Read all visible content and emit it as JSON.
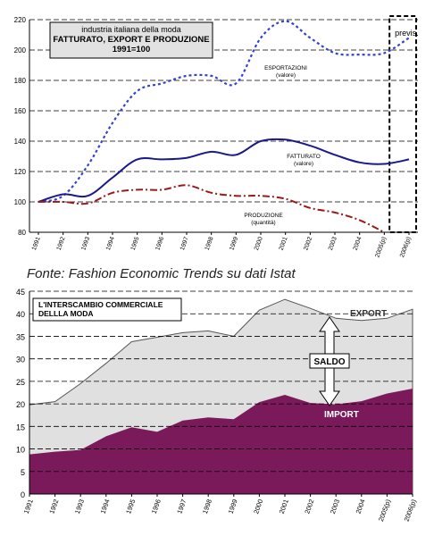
{
  "source_text": "Fonte: Fashion Economic Trends su dati Istat",
  "chart_data": [
    {
      "type": "line",
      "title_lines": [
        "industria italiana della moda",
        "FATTURATO, EXPORT E PRODUZIONE",
        "1991=100"
      ],
      "x": [
        "1991",
        "1992",
        "1993",
        "1994",
        "1995",
        "1996",
        "1997",
        "1998",
        "1999",
        "2000",
        "2001",
        "2002",
        "2003",
        "2004",
        "2005(p)",
        "2006(p)"
      ],
      "ylim": [
        80,
        220
      ],
      "yticks": [
        80,
        100,
        120,
        140,
        160,
        180,
        200,
        220
      ],
      "grid": true,
      "forecast_label": "previs.",
      "series": [
        {
          "name": "ESPORTAZIONI",
          "unit_label": "(valore)",
          "color": "#3344cc",
          "style": "dotted",
          "values": [
            100,
            104,
            124,
            152,
            173,
            178,
            183,
            183,
            178,
            208,
            219,
            208,
            198,
            197,
            198,
            208
          ]
        },
        {
          "name": "FATTURATO",
          "unit_label": "(valore)",
          "color": "#1a1a8a",
          "style": "solid",
          "values": [
            100,
            105,
            104,
            116,
            128,
            128,
            129,
            133,
            131,
            140,
            141,
            137,
            131,
            126,
            125,
            128
          ]
        },
        {
          "name": "PRODUZIONE",
          "unit_label": "(quantità)",
          "color": "#9a1a1a",
          "style": "dashdot",
          "values": [
            100,
            100,
            99,
            106,
            108,
            108,
            111,
            106,
            104,
            104,
            102,
            96,
            93,
            88,
            80,
            null
          ]
        }
      ]
    },
    {
      "type": "area",
      "title_lines": [
        "L'INTERSCAMBIO COMMERCIALE",
        "DELLLA MODA"
      ],
      "x": [
        "1991",
        "1992",
        "1993",
        "1994",
        "1995",
        "1996",
        "1997",
        "1998",
        "1999",
        "2000",
        "2001",
        "2002",
        "2003",
        "2004",
        "2005(p)",
        "2006(p)"
      ],
      "ylim": [
        0,
        45
      ],
      "yticks": [
        0,
        5,
        10,
        15,
        20,
        25,
        30,
        35,
        40,
        45
      ],
      "grid": true,
      "saldo_label": "SALDO",
      "series": [
        {
          "name": "EXPORT",
          "color": "#e0e0e0",
          "values": [
            19.8,
            20.5,
            24.5,
            29,
            33.8,
            34.8,
            35.8,
            36.2,
            35,
            40.8,
            43.2,
            41.2,
            39,
            38.5,
            39,
            41
          ]
        },
        {
          "name": "IMPORT",
          "color": "#7a1a5a",
          "values": [
            8.8,
            9.4,
            9.8,
            12.8,
            14.8,
            13.8,
            16.3,
            17,
            16.6,
            20.4,
            22,
            20.2,
            19.9,
            20.6,
            22.3,
            23.4
          ]
        }
      ]
    }
  ]
}
